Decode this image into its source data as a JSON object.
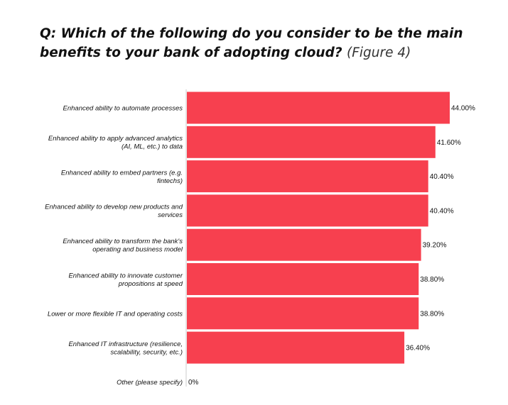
{
  "header": {
    "title": "Q: Which of the following do you consider to be the main benefits to your bank of adopting cloud?",
    "figure_ref": "(Figure 4)"
  },
  "colors": {
    "bar": "#F7404F",
    "axis": "#cccccc",
    "text": "#111111"
  },
  "chart_data": {
    "type": "bar",
    "orientation": "horizontal",
    "title": "Q: Which of the following do you consider to be the main benefits to your bank of adopting cloud?",
    "categories": [
      [
        "Enhanced ability to automate processes"
      ],
      [
        "Enhanced ability to apply advanced analytics",
        "(AI, ML, etc.) to data"
      ],
      [
        "Enhanced ability to embed partners (e.g.",
        "fintechs)"
      ],
      [
        "Enhanced ability to develop new products and",
        "services"
      ],
      [
        "Enhanced ability to transform the bank's",
        "operating and business model"
      ],
      [
        "Enhanced ability to innovate customer",
        "propositions at speed"
      ],
      [
        "Lower or more flexible IT and operating costs"
      ],
      [
        "Enhanced IT infrastructure (resilience,",
        "scalability, security, etc.)"
      ],
      [
        "Other (please specify)"
      ]
    ],
    "values": [
      44.0,
      41.6,
      40.4,
      40.4,
      39.2,
      38.8,
      38.8,
      36.4,
      0
    ],
    "value_labels": [
      "44.00%",
      "41.60%",
      "40.40%",
      "40.40%",
      "39.20%",
      "38.80%",
      "38.80%",
      "36.40%",
      "0%"
    ],
    "xlim": [
      0,
      44.0
    ],
    "grid": false,
    "legend": "none"
  }
}
